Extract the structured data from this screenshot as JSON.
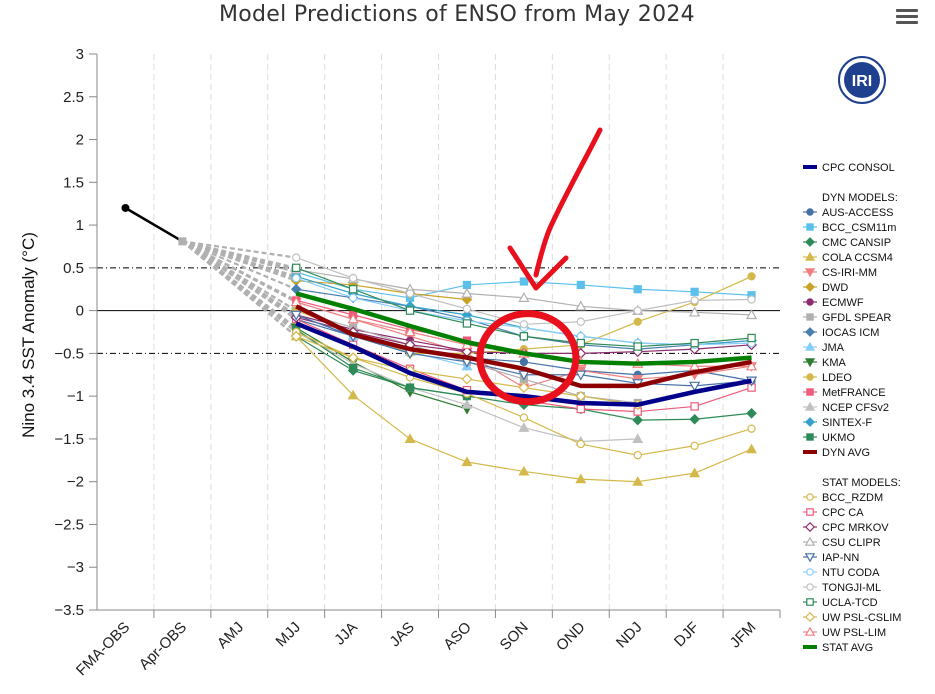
{
  "chart_data": {
    "type": "line",
    "title": "Model Predictions of ENSO from May 2024",
    "ylabel": "Nino 3.4 SST Anomaly (°C)",
    "xlabel": "",
    "ylim": [
      -3.5,
      3
    ],
    "yticks": [
      "3",
      "2.5",
      "2",
      "1.5",
      "1",
      "0.5",
      "0",
      "−0.5",
      "−1",
      "−1.5",
      "−2",
      "−2.5",
      "−3",
      "−3.5"
    ],
    "categories": [
      "FMA-OBS",
      "Apr-OBS",
      "AMJ",
      "MJJ",
      "JJA",
      "JAS",
      "ASO",
      "SON",
      "OND",
      "NDJ",
      "DJF",
      "JFM"
    ],
    "reference_lines": [
      0.5,
      0,
      -0.5
    ],
    "legend_position": "right",
    "logo_text": "IRI",
    "observed": {
      "x": [
        "FMA-OBS",
        "Apr-OBS"
      ],
      "values": [
        1.2,
        0.81
      ],
      "color": "#000000"
    },
    "legend_headers": {
      "dyn": "DYN MODELS:",
      "stat": "STAT MODELS:"
    },
    "series": [
      {
        "name": "CPC CONSOL",
        "group": "top",
        "color": "#00008b",
        "width": 4.5,
        "marker": "none",
        "values": [
          null,
          null,
          null,
          -0.15,
          -0.42,
          -0.73,
          -0.95,
          -1.0,
          -1.08,
          -1.1,
          -0.95,
          -0.82
        ]
      },
      {
        "name": "AUS-ACCESS",
        "group": "dyn",
        "color": "#4572a7",
        "marker": "circle",
        "values": [
          null,
          null,
          null,
          -0.1,
          -0.3,
          -0.45,
          -0.55,
          -0.6,
          -0.7,
          -0.75,
          -0.7,
          -0.82
        ]
      },
      {
        "name": "BCC_CSM11m",
        "group": "dyn",
        "color": "#5bc0eb",
        "marker": "square",
        "values": [
          null,
          null,
          null,
          0.45,
          0.25,
          0.15,
          0.3,
          0.34,
          0.3,
          0.25,
          0.22,
          0.18
        ]
      },
      {
        "name": "CMC CANSIP",
        "group": "dyn",
        "color": "#2e8b57",
        "marker": "diamond",
        "values": [
          null,
          null,
          null,
          -0.3,
          -0.7,
          -0.9,
          -1.0,
          -1.1,
          -1.15,
          -1.28,
          -1.27,
          -1.2
        ]
      },
      {
        "name": "COLA CCSM4",
        "group": "dyn",
        "color": "#d4b84a",
        "marker": "triangle",
        "values": [
          null,
          null,
          null,
          -0.3,
          -0.99,
          -1.5,
          -1.77,
          -1.88,
          -1.97,
          -2.0,
          -1.9,
          -1.62
        ]
      },
      {
        "name": "CS-IRI-MM",
        "group": "dyn",
        "color": "#f08080",
        "marker": "triangle-down",
        "values": [
          null,
          null,
          null,
          0.1,
          -0.1,
          -0.3,
          -0.5,
          -0.9,
          -0.7,
          -0.8,
          -0.75,
          -0.65
        ]
      },
      {
        "name": "DWD",
        "group": "dyn",
        "color": "#c9a227",
        "marker": "diamond",
        "values": [
          null,
          null,
          null,
          0.35,
          0.3,
          0.2,
          0.13,
          null,
          null,
          null,
          null,
          null
        ]
      },
      {
        "name": "ECMWF",
        "group": "dyn",
        "color": "#8b2c6e",
        "marker": "circle",
        "values": [
          null,
          null,
          null,
          -0.05,
          -0.22,
          -0.35,
          -0.47,
          null,
          null,
          null,
          null,
          null
        ]
      },
      {
        "name": "GFDL SPEAR",
        "group": "dyn",
        "color": "#b0b0b0",
        "marker": "square",
        "values": [
          null,
          null,
          null,
          0.0,
          -0.2,
          -0.4,
          -0.6,
          -0.8,
          -1.0,
          -1.08,
          null,
          null
        ]
      },
      {
        "name": "IOCAS ICM",
        "group": "dyn",
        "color": "#4a7eaf",
        "marker": "diamond",
        "values": [
          null,
          null,
          null,
          0.25,
          0.15,
          0.05,
          -0.1,
          -0.3,
          -0.4,
          -0.45,
          -0.4,
          -0.35
        ]
      },
      {
        "name": "JMA",
        "group": "dyn",
        "color": "#87cefa",
        "marker": "triangle",
        "values": [
          null,
          null,
          null,
          -0.05,
          -0.3,
          -0.48,
          -0.65,
          null,
          null,
          null,
          null,
          null
        ]
      },
      {
        "name": "KMA",
        "group": "dyn",
        "color": "#2e7d32",
        "marker": "triangle-down",
        "values": [
          null,
          null,
          null,
          -0.2,
          -0.6,
          -0.95,
          -1.15,
          null,
          null,
          null,
          null,
          null
        ]
      },
      {
        "name": "LDEO",
        "group": "dyn",
        "color": "#d4b84a",
        "marker": "circle",
        "values": [
          null,
          null,
          null,
          0.0,
          -0.25,
          -0.5,
          -0.5,
          -0.45,
          -0.4,
          -0.13,
          0.1,
          0.4
        ]
      },
      {
        "name": "MetFRANCE",
        "group": "dyn",
        "color": "#ef5b7a",
        "marker": "square",
        "values": [
          null,
          null,
          null,
          0.12,
          -0.05,
          -0.22,
          -0.35,
          null,
          null,
          null,
          null,
          null
        ]
      },
      {
        "name": "NCEP CFSv2",
        "group": "dyn",
        "color": "#c0c0c0",
        "marker": "triangle",
        "values": [
          null,
          null,
          null,
          -0.25,
          -0.62,
          -0.9,
          -1.1,
          -1.37,
          -1.53,
          -1.5,
          null,
          null
        ]
      },
      {
        "name": "SINTEX-F",
        "group": "dyn",
        "color": "#36a2c9",
        "marker": "diamond",
        "values": [
          null,
          null,
          null,
          0.4,
          0.2,
          0.05,
          -0.05,
          -0.2,
          -0.3,
          -0.38,
          -0.4,
          -0.35
        ]
      },
      {
        "name": "UKMO",
        "group": "dyn",
        "color": "#2e8b57",
        "marker": "square",
        "values": [
          null,
          null,
          null,
          -0.22,
          -0.67,
          -0.9,
          -1.0,
          null,
          null,
          null,
          null,
          null
        ]
      },
      {
        "name": "DYN AVG",
        "group": "dyn",
        "color": "#8b0000",
        "width": 4.5,
        "marker": "none",
        "values": [
          null,
          null,
          null,
          0.05,
          -0.28,
          -0.45,
          -0.55,
          -0.68,
          -0.88,
          -0.88,
          -0.72,
          -0.6
        ]
      },
      {
        "name": "BCC_RZDM",
        "group": "stat",
        "color": "#d4b84a",
        "marker": "circle-open",
        "values": [
          null,
          null,
          null,
          -0.25,
          -0.55,
          -0.78,
          -0.97,
          -1.25,
          -1.56,
          -1.69,
          -1.58,
          -1.38
        ]
      },
      {
        "name": "CPC CA",
        "group": "stat",
        "color": "#ef5b7a",
        "marker": "square-open",
        "values": [
          null,
          null,
          null,
          -0.1,
          -0.4,
          -0.68,
          -0.93,
          -1.05,
          -1.15,
          -1.18,
          -1.12,
          -0.9
        ]
      },
      {
        "name": "CPC MRKOV",
        "group": "stat",
        "color": "#8b2c6e",
        "marker": "diamond-open",
        "values": [
          null,
          null,
          null,
          -0.08,
          -0.25,
          -0.4,
          -0.48,
          -0.5,
          -0.5,
          -0.48,
          -0.45,
          -0.4
        ]
      },
      {
        "name": "CSU CLIPR",
        "group": "stat",
        "color": "#b0b0b0",
        "marker": "triangle-open",
        "values": [
          null,
          null,
          null,
          0.48,
          0.37,
          0.25,
          0.2,
          0.15,
          0.05,
          0.0,
          -0.02,
          -0.05
        ]
      },
      {
        "name": "IAP-NN",
        "group": "stat",
        "color": "#4572a7",
        "marker": "triangle-down-open",
        "values": [
          null,
          null,
          null,
          -0.05,
          -0.3,
          -0.5,
          -0.6,
          -0.75,
          -0.75,
          -0.85,
          -0.88,
          -0.82
        ]
      },
      {
        "name": "NTU CODA",
        "group": "stat",
        "color": "#87cefa",
        "marker": "circle-open",
        "values": [
          null,
          null,
          null,
          0.38,
          0.15,
          0.0,
          -0.12,
          -0.2,
          -0.3,
          -0.38,
          -0.4,
          -0.38
        ]
      },
      {
        "name": "TONGJI-ML",
        "group": "stat",
        "color": "#c0c0c0",
        "marker": "circle-open",
        "values": [
          null,
          null,
          null,
          0.62,
          0.38,
          0.2,
          0.02,
          -0.16,
          -0.13,
          0.0,
          0.12,
          0.13
        ]
      },
      {
        "name": "UCLA-TCD",
        "group": "stat",
        "color": "#2e8b57",
        "marker": "square-open",
        "values": [
          null,
          null,
          null,
          0.5,
          0.25,
          0.0,
          -0.15,
          -0.3,
          -0.38,
          -0.42,
          -0.38,
          -0.32
        ]
      },
      {
        "name": "UW PSL-CSLIM",
        "group": "stat",
        "color": "#d4b84a",
        "marker": "diamond-open",
        "values": [
          null,
          null,
          null,
          -0.3,
          -0.55,
          -0.7,
          -0.8,
          -0.9,
          -1.0,
          -1.1,
          null,
          null
        ]
      },
      {
        "name": "UW PSL-LIM",
        "group": "stat",
        "color": "#f08080",
        "marker": "triangle-open",
        "values": [
          null,
          null,
          null,
          0.1,
          -0.1,
          -0.25,
          -0.4,
          -0.5,
          -0.6,
          -0.62,
          -0.65,
          -0.65
        ]
      },
      {
        "name": "STAT AVG",
        "group": "stat",
        "color": "#008000",
        "width": 4.5,
        "marker": "none",
        "values": [
          null,
          null,
          null,
          0.2,
          0.02,
          -0.18,
          -0.37,
          -0.5,
          -0.6,
          -0.62,
          -0.6,
          -0.55
        ]
      }
    ]
  },
  "toolbar": {
    "menu_icon": "hamburger-menu-icon"
  },
  "annotation": {
    "color": "#e8101c"
  }
}
